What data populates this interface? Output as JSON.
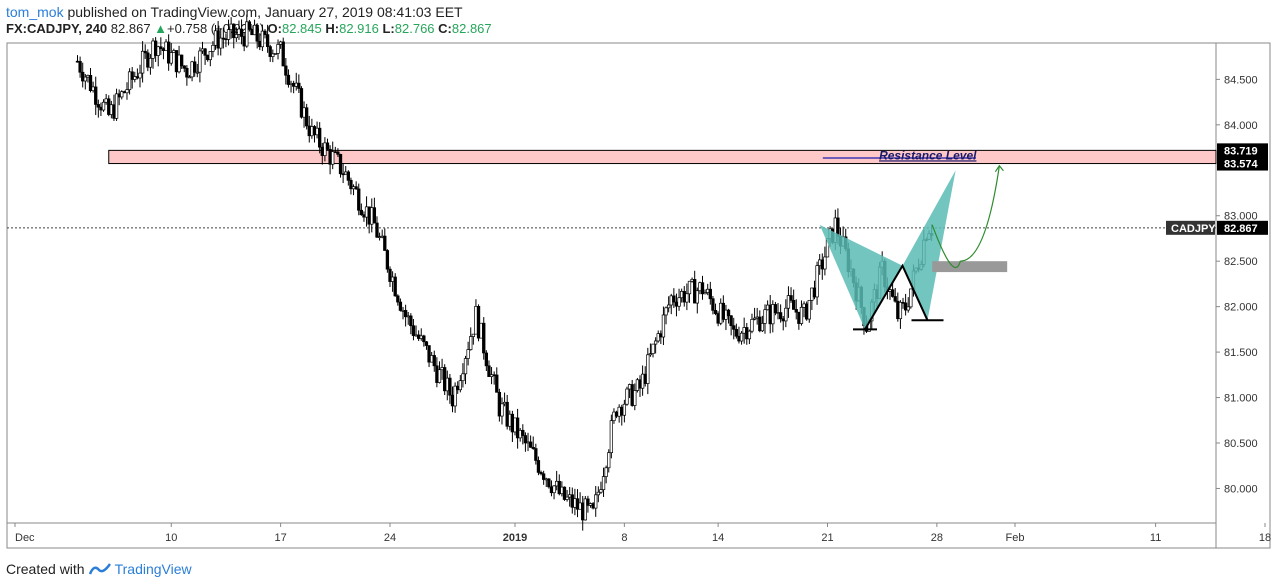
{
  "header": {
    "user": "tom_mok",
    "published": "published on TradingView.com, January 27, 2019 08:41:03 EET"
  },
  "quote": {
    "symbol": "FX:CADJPY, 240",
    "last": "82.867",
    "change_arrow": "▲",
    "change": "+0.758 (+0.92%)",
    "open_label": "O:",
    "open": "82.845",
    "high_label": "H:",
    "high": "82.916",
    "low_label": "L:",
    "low": "82.766",
    "close_label": "C:",
    "close": "82.867"
  },
  "chart_data": {
    "type": "candlestick",
    "symbol": "CADJPY",
    "timeframe": "240",
    "y_ticks": [
      "84.500",
      "84.000",
      "83.000",
      "82.500",
      "82.000",
      "81.500",
      "81.000",
      "80.500",
      "80.000"
    ],
    "y_tick_values": [
      84.5,
      84.0,
      83.0,
      82.5,
      82.0,
      81.5,
      81.0,
      80.5,
      80.0
    ],
    "ylim": [
      79.62,
      84.9
    ],
    "x_ticks": [
      "Dec",
      "10",
      "17",
      "24",
      "2019",
      "8",
      "14",
      "21",
      "28",
      "Feb",
      "11",
      "18"
    ],
    "x_tick_days": [
      0,
      10,
      17,
      24,
      32,
      39,
      45,
      52,
      59,
      64,
      73,
      80
    ],
    "price_path_days": [
      4,
      6,
      9,
      11,
      13,
      15,
      17,
      19,
      21,
      23,
      25,
      26,
      28,
      29.5,
      31,
      33,
      35,
      37,
      38.5,
      40,
      42,
      44,
      46,
      48,
      49.5,
      50.5,
      51.5,
      52.5,
      53.5,
      54.5,
      55.5,
      56.5,
      57,
      57.5,
      58,
      58.4,
      58.7
    ],
    "price_path": [
      84.7,
      84.1,
      84.9,
      84.6,
      84.95,
      85.0,
      84.8,
      83.9,
      83.5,
      82.9,
      81.9,
      81.6,
      81.0,
      81.9,
      80.9,
      80.4,
      79.9,
      79.7,
      80.9,
      81.1,
      82.1,
      82.2,
      81.7,
      81.9,
      82.0,
      81.9,
      82.4,
      82.9,
      82.4,
      81.8,
      82.4,
      81.9,
      82.0,
      82.3,
      82.6,
      82.9,
      82.87
    ],
    "last_price": 82.867,
    "symbol_label": "CADJPY",
    "last_price_label": "82.867",
    "resistance": {
      "label": "Resistance Level",
      "top": 83.719,
      "bottom": 83.574,
      "top_label": "83.719",
      "bottom_label": "83.574",
      "start_day": 6
    },
    "pattern": {
      "X": [
        51.5,
        82.9
      ],
      "A": [
        54.4,
        81.75
      ],
      "B": [
        56.8,
        82.45
      ],
      "C": [
        58.4,
        81.85
      ],
      "D": [
        60.2,
        83.5
      ]
    },
    "target_zone": {
      "from_day": 58.7,
      "to_day": 63.5,
      "low": 82.38,
      "high": 82.5
    },
    "projection": {
      "from": [
        58.7,
        82.9
      ],
      "low": [
        60.5,
        82.5
      ],
      "to": [
        63.0,
        83.55
      ]
    },
    "colors": {
      "resistance_fill": "#ffc8c8",
      "pattern_fill": "#5bbcb4",
      "projection": "#2e8b2e",
      "target_zone": "#999999",
      "label_bg": "#000000",
      "symbol_bg": "#333333"
    }
  },
  "footer": {
    "created_with": "Created with",
    "brand": "TradingView",
    "logo_icon": "tradingview-logo-icon"
  }
}
